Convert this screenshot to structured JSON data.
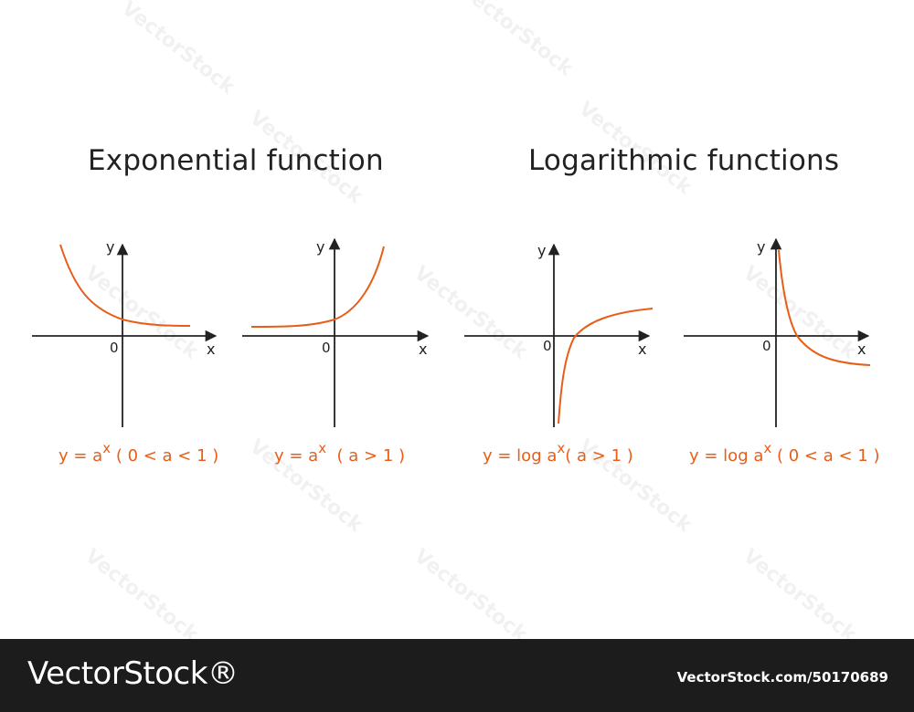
{
  "headings": {
    "exponential": "Exponential function",
    "logarithmic": "Logarithmic functions"
  },
  "colors": {
    "axis": "#222222",
    "curve": "#e85d17",
    "formula": "#e85d17",
    "footer_bg": "#1c1c1c"
  },
  "graphs": [
    {
      "function": "exponential",
      "base_condition": "0<a<1",
      "axis_x_label": "x",
      "axis_y_label": "y",
      "origin_label": "0",
      "formula": {
        "prefix": "y = a",
        "sup": "x",
        "suffix": " ( 0 < a < 1 )"
      }
    },
    {
      "function": "exponential",
      "base_condition": "a>1",
      "axis_x_label": "x",
      "axis_y_label": "y",
      "origin_label": "0",
      "formula": {
        "prefix": "y = a",
        "sup": "x",
        "suffix": "  ( a > 1 )"
      }
    },
    {
      "function": "logarithmic",
      "base_condition": "a>1",
      "axis_x_label": "x",
      "axis_y_label": "y",
      "origin_label": "0",
      "formula": {
        "prefix": "y = log a",
        "sup": "x",
        "suffix": "( a > 1 )"
      }
    },
    {
      "function": "logarithmic",
      "base_condition": "0<a<1",
      "axis_x_label": "x",
      "axis_y_label": "y",
      "origin_label": "0",
      "formula": {
        "prefix": "y = log a",
        "sup": "x",
        "suffix": " ( 0 < a < 1 )"
      }
    }
  ],
  "watermark": {
    "text": "VectorStock"
  },
  "footer": {
    "brand": "VectorStock®",
    "url": "VectorStock.com/50170689"
  }
}
